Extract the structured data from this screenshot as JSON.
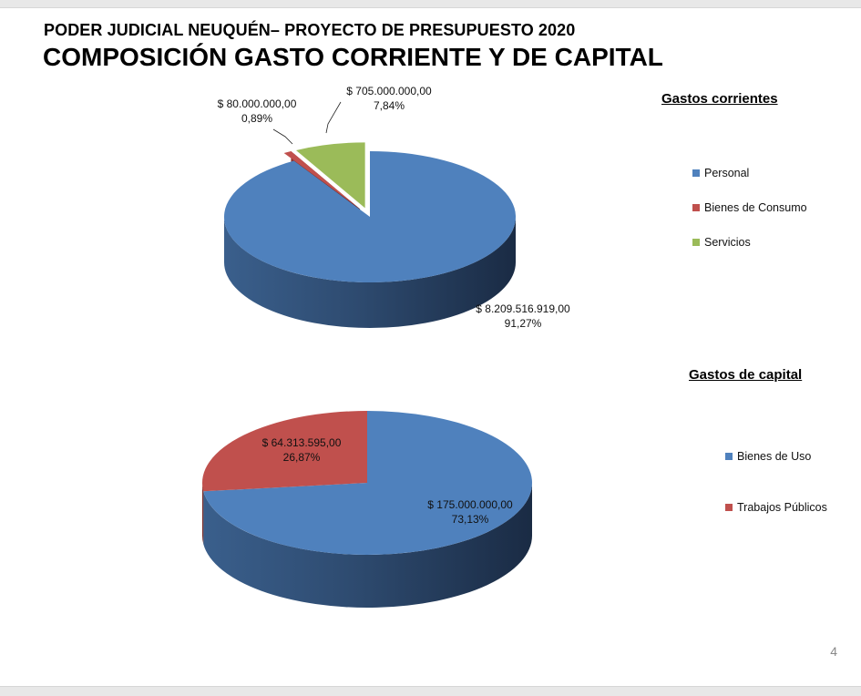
{
  "slide": {
    "title_line1": "PODER JUDICIAL NEUQUÉN– PROYECTO DE PRESUPUESTO 2020",
    "title_line2": "COMPOSICIÓN GASTO CORRIENTE Y DE CAPITAL",
    "page_number": "4"
  },
  "chart_data": [
    {
      "type": "pie",
      "title": "Gastos corrientes",
      "categories": [
        "Personal",
        "Bienes de Consumo",
        "Servicios"
      ],
      "values": [
        8209516919.0,
        80000000.0,
        705000000.0
      ],
      "value_labels": [
        "$ 8.209.516.919,00",
        "$ 80.000.000,00",
        "$ 705.000.000,00"
      ],
      "percent_labels": [
        "91,27%",
        "0,89%",
        "7,84%"
      ],
      "colors": [
        "#4f81bd",
        "#c0504d",
        "#9bbb59"
      ],
      "legend_position": "right"
    },
    {
      "type": "pie",
      "title": "Gastos de capital",
      "categories": [
        "Bienes de Uso",
        "Trabajos Públicos"
      ],
      "values": [
        175000000.0,
        64313595.0
      ],
      "value_labels": [
        "$ 175.000.000,00",
        "$ 64.313.595,00"
      ],
      "percent_labels": [
        "73,13%",
        "26,87%"
      ],
      "colors": [
        "#4f81bd",
        "#c0504d"
      ],
      "legend_position": "right"
    }
  ]
}
